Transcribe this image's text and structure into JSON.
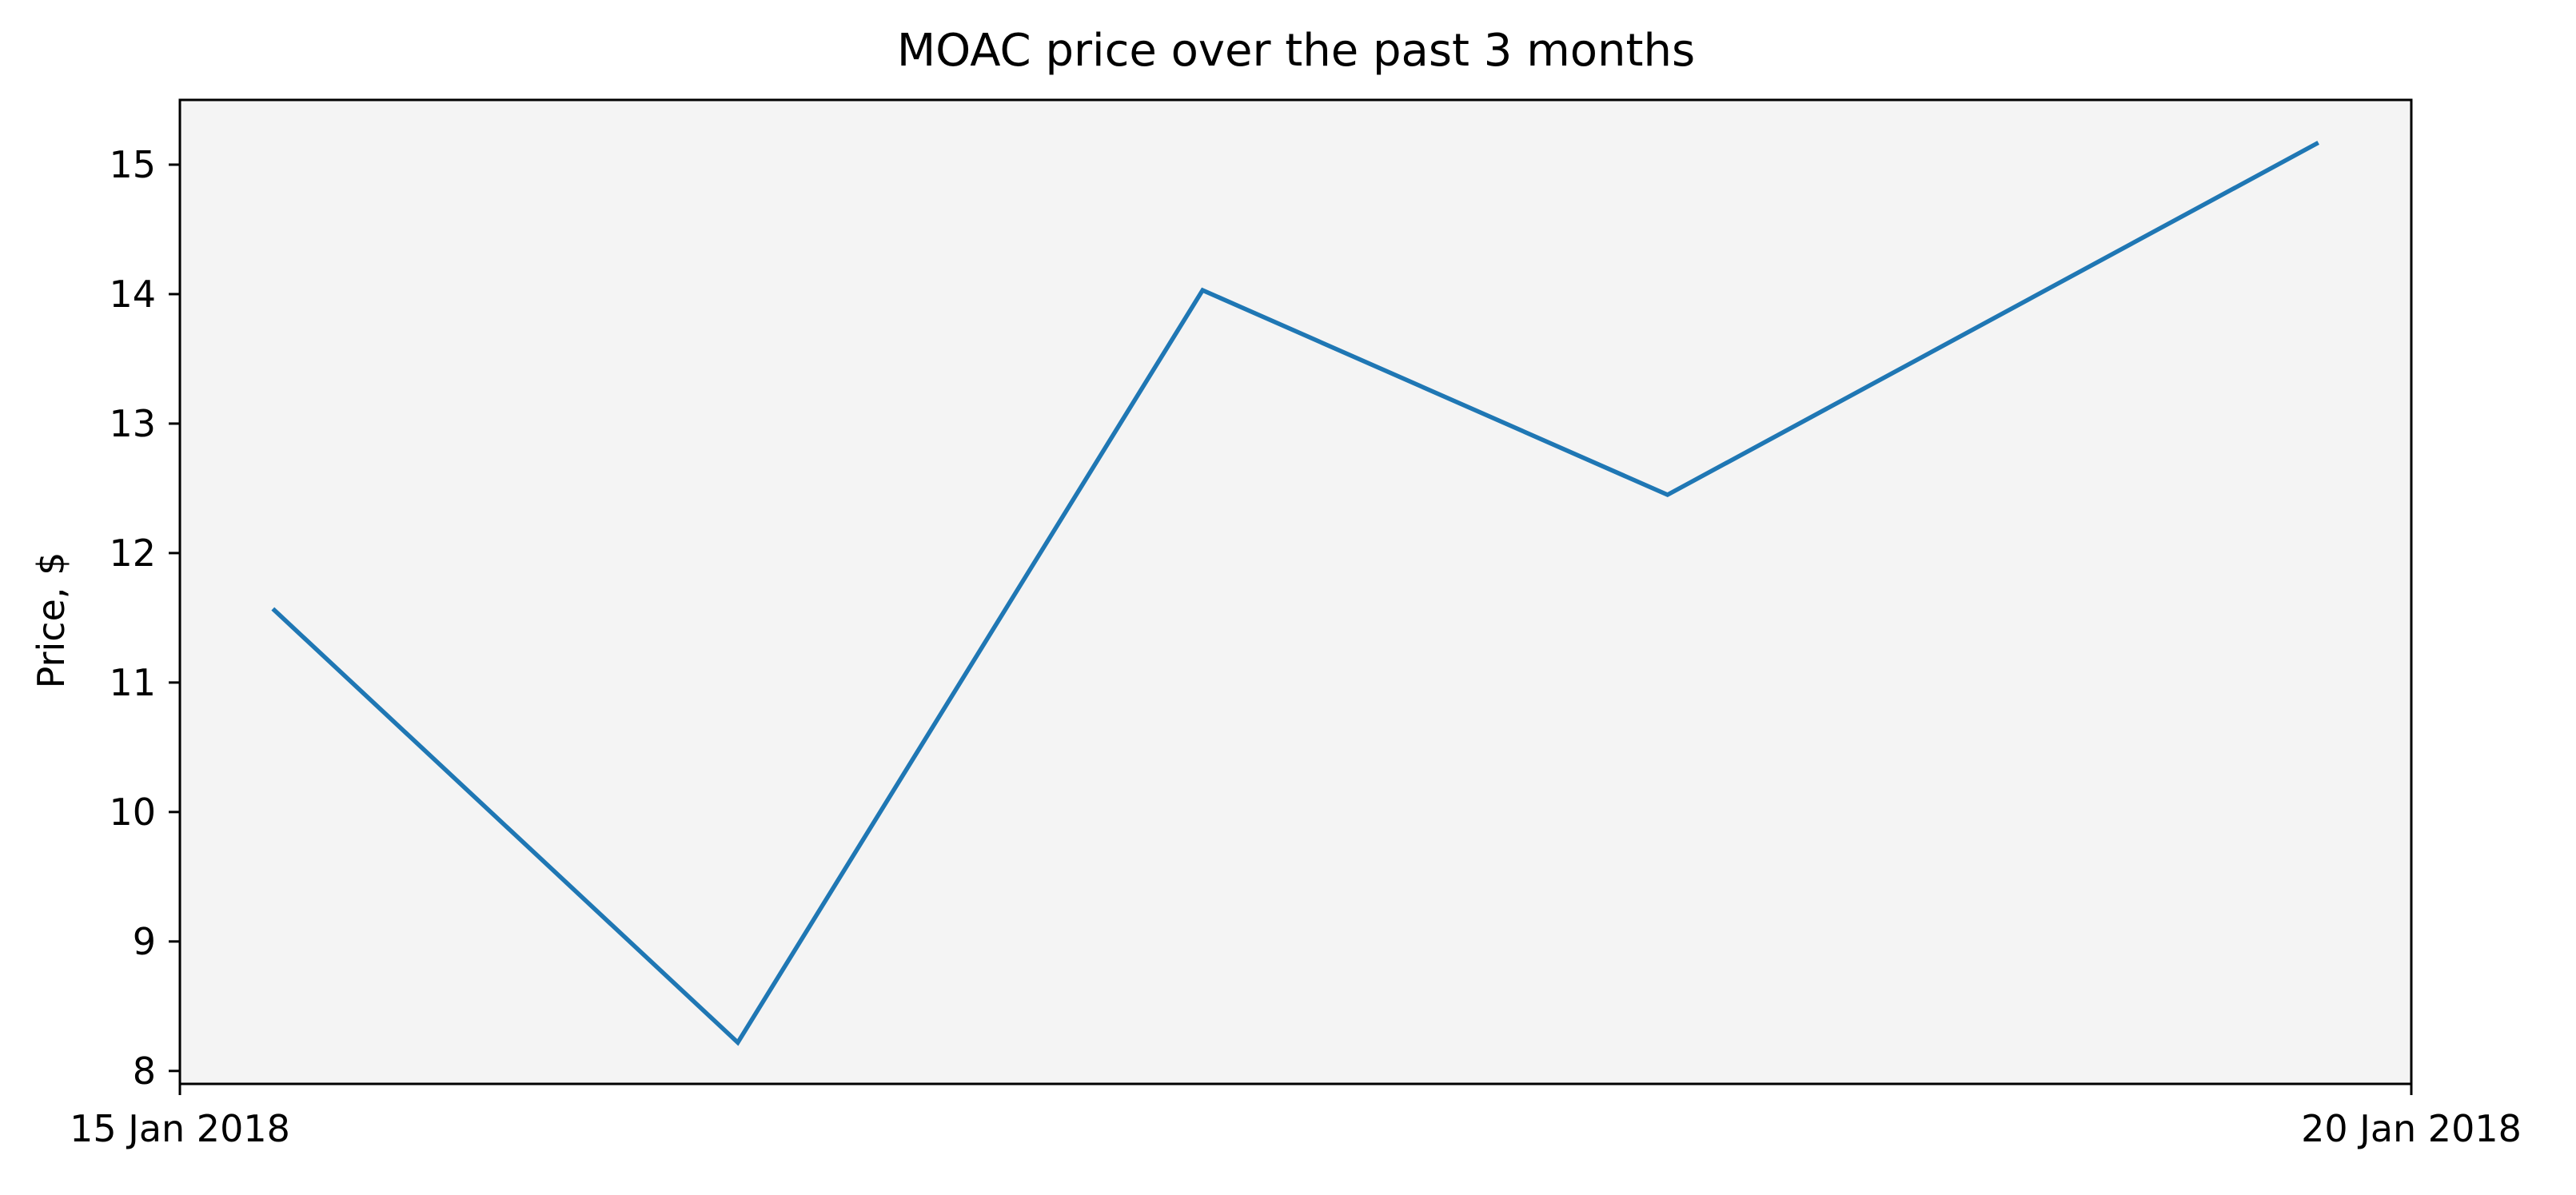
{
  "chart_data": {
    "type": "line",
    "title": "MOAC price over the past 3 months",
    "xlabel": "",
    "ylabel": "Price, $",
    "x_ticks": [
      "15 Jan 2018",
      "20 Jan 2018"
    ],
    "xlim": [
      "2018-01-15",
      "2018-01-20"
    ],
    "ylim": [
      7.9,
      15.5
    ],
    "y_ticks": [
      8,
      9,
      10,
      11,
      12,
      13,
      14,
      15
    ],
    "grid": false,
    "legend": "none",
    "plot_background": "#f4f4f4",
    "series": [
      {
        "color": "#1f77b4",
        "points": [
          {
            "x": "2018-01-15 05:00",
            "y": 11.57
          },
          {
            "x": "2018-01-16 06:00",
            "y": 8.22
          },
          {
            "x": "2018-01-17 07:00",
            "y": 14.03
          },
          {
            "x": "2018-01-18 08:00",
            "y": 12.45
          },
          {
            "x": "2018-01-19 19:00",
            "y": 15.17
          }
        ]
      }
    ]
  }
}
